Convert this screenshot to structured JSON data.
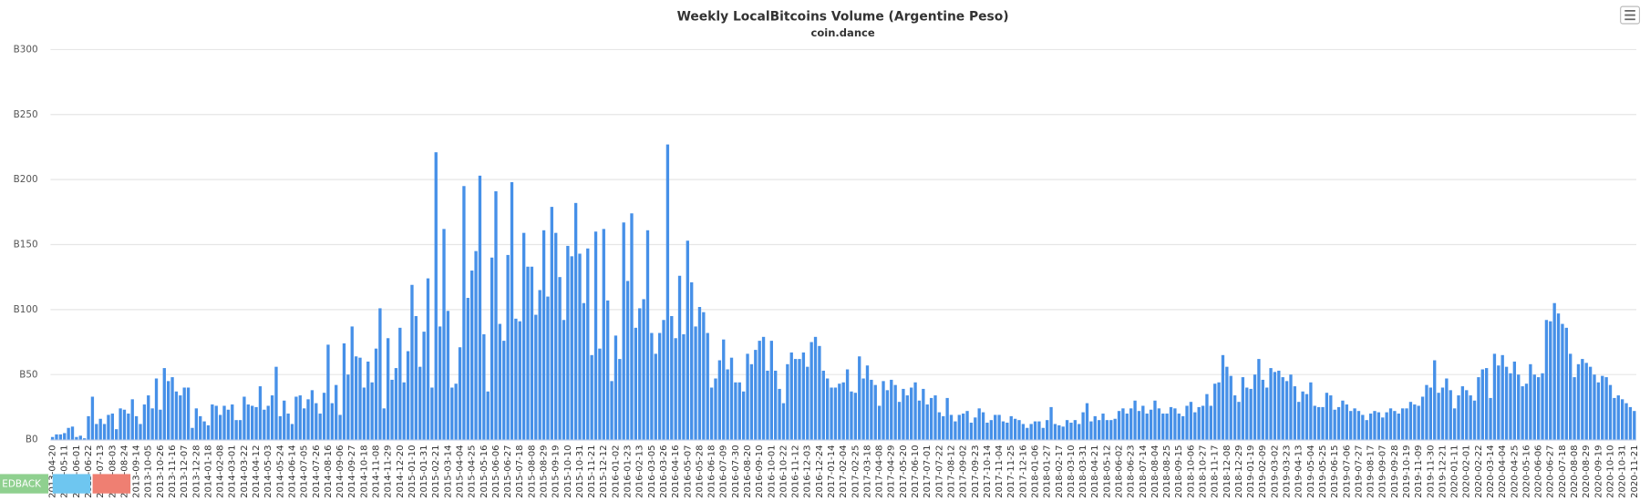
{
  "chart_data": {
    "type": "bar",
    "title": "Weekly LocalBitcoins Volume (Argentine Peso)",
    "subtitle": "coin.dance",
    "color": "#4690e8",
    "grid": true,
    "ylim": [
      0,
      300
    ],
    "yticks": [
      {
        "value": 0,
        "label": "B0"
      },
      {
        "value": 50,
        "label": "B50"
      },
      {
        "value": 100,
        "label": "B100"
      },
      {
        "value": 150,
        "label": "B150"
      },
      {
        "value": 200,
        "label": "B200"
      },
      {
        "value": 250,
        "label": "B250"
      },
      {
        "value": 300,
        "label": "B300"
      }
    ],
    "categories": [
      "2013-04-20",
      null,
      null,
      "2013-05-11",
      null,
      null,
      "2013-06-01",
      null,
      null,
      "2013-06-22",
      null,
      null,
      "2013-07-13",
      null,
      null,
      "2013-08-03",
      null,
      null,
      "2013-08-24",
      null,
      null,
      "2013-09-14",
      null,
      null,
      "2013-10-05",
      null,
      null,
      "2013-10-26",
      null,
      null,
      "2013-11-16",
      null,
      null,
      "2013-12-07",
      null,
      null,
      "2013-12-28",
      null,
      null,
      "2014-01-18",
      null,
      null,
      "2014-02-08",
      null,
      null,
      "2014-03-01",
      null,
      null,
      "2014-03-22",
      null,
      null,
      "2014-04-12",
      null,
      null,
      "2014-05-03",
      null,
      null,
      "2014-05-24",
      null,
      null,
      "2014-06-14",
      null,
      null,
      "2014-07-05",
      null,
      null,
      "2014-07-26",
      null,
      null,
      "2014-08-16",
      null,
      null,
      "2014-09-06",
      null,
      null,
      "2014-09-27",
      null,
      null,
      "2014-10-18",
      null,
      null,
      "2014-11-08",
      null,
      null,
      "2014-11-29",
      null,
      null,
      "2014-12-20",
      null,
      null,
      "2015-01-10",
      null,
      null,
      "2015-01-31",
      null,
      null,
      "2015-02-21",
      null,
      null,
      "2015-03-14",
      null,
      null,
      "2015-04-04",
      null,
      null,
      "2015-04-25",
      null,
      null,
      "2015-05-16",
      null,
      null,
      "2015-06-06",
      null,
      null,
      "2015-06-27",
      null,
      null,
      "2015-07-18",
      null,
      null,
      "2015-08-08",
      null,
      null,
      "2015-08-29",
      null,
      null,
      "2015-09-19",
      null,
      null,
      "2015-10-10",
      null,
      null,
      "2015-10-31",
      null,
      null,
      "2015-11-21",
      null,
      null,
      "2015-12-12",
      null,
      null,
      "2016-01-02",
      null,
      null,
      "2016-01-23",
      null,
      null,
      "2016-02-13",
      null,
      null,
      "2016-03-05",
      null,
      null,
      "2016-03-26",
      null,
      null,
      "2016-04-16",
      null,
      null,
      "2016-05-07",
      null,
      null,
      "2016-05-28",
      null,
      null,
      "2016-06-18",
      null,
      null,
      "2016-07-09",
      null,
      null,
      "2016-07-30",
      null,
      null,
      "2016-08-20",
      null,
      null,
      "2016-09-10",
      null,
      null,
      "2016-10-01",
      null,
      null,
      "2016-10-22",
      null,
      null,
      "2016-11-12",
      null,
      null,
      "2016-12-03",
      null,
      null,
      "2016-12-24",
      null,
      null,
      "2017-01-14",
      null,
      null,
      "2017-02-04",
      null,
      null,
      "2017-02-25",
      null,
      null,
      "2017-03-18",
      null,
      null,
      "2017-04-08",
      null,
      null,
      "2017-04-29",
      null,
      null,
      "2017-05-20",
      null,
      null,
      "2017-06-10",
      null,
      null,
      "2017-07-01",
      null,
      null,
      "2017-07-22",
      null,
      null,
      "2017-08-12",
      null,
      null,
      "2017-09-02",
      null,
      null,
      "2017-09-23",
      null,
      null,
      "2017-10-14",
      null,
      null,
      "2017-11-04",
      null,
      null,
      "2017-11-25",
      null,
      null,
      "2017-12-16",
      null,
      null,
      "2018-01-06",
      null,
      null,
      "2018-01-27",
      null,
      null,
      "2018-02-17",
      null,
      null,
      "2018-03-10",
      null,
      null,
      "2018-03-31",
      null,
      null,
      "2018-04-21",
      null,
      null,
      "2018-05-12",
      null,
      null,
      "2018-06-02",
      null,
      null,
      "2018-06-23",
      null,
      null,
      "2018-07-14",
      null,
      null,
      "2018-08-04",
      null,
      null,
      "2018-08-25",
      null,
      null,
      "2018-09-15",
      null,
      null,
      "2018-10-06",
      null,
      null,
      "2018-10-27",
      null,
      null,
      "2018-11-17",
      null,
      null,
      "2018-12-08",
      null,
      null,
      "2018-12-29",
      null,
      null,
      "2019-01-19",
      null,
      null,
      "2019-02-09",
      null,
      null,
      "2019-03-02",
      null,
      null,
      "2019-03-23",
      null,
      null,
      "2019-04-13",
      null,
      null,
      "2019-05-04",
      null,
      null,
      "2019-05-25",
      null,
      null,
      "2019-06-15",
      null,
      null,
      "2019-07-06",
      null,
      null,
      "2019-07-27",
      null,
      null,
      "2019-08-17",
      null,
      null,
      "2019-09-07",
      null,
      null,
      "2019-09-28",
      null,
      null,
      "2019-10-19",
      null,
      null,
      "2019-11-09",
      null,
      null,
      "2019-11-30",
      null,
      null,
      "2019-12-21",
      null,
      null,
      "2020-01-11",
      null,
      null,
      "2020-02-01",
      null,
      null,
      "2020-02-22",
      null,
      null,
      "2020-03-14",
      null,
      null,
      "2020-04-04",
      null,
      null,
      "2020-04-25",
      null,
      null,
      "2020-05-16",
      null,
      null,
      "2020-06-06",
      null,
      null,
      "2020-06-27",
      null,
      null,
      "2020-07-18",
      null,
      null,
      "2020-08-08",
      null,
      null,
      "2020-08-29",
      null,
      null,
      "2020-09-19",
      null,
      null,
      "2020-10-10",
      null,
      null,
      "2020-10-31",
      null,
      null,
      "2020-11-21"
    ],
    "values": [
      2,
      4,
      4,
      5,
      9,
      10,
      2,
      3,
      1,
      18,
      33,
      12,
      16,
      12,
      19,
      20,
      8,
      24,
      23,
      20,
      31,
      18,
      12,
      27,
      34,
      24,
      47,
      23,
      55,
      45,
      48,
      37,
      34,
      40,
      40,
      9,
      24,
      18,
      14,
      11,
      27,
      26,
      19,
      26,
      23,
      27,
      15,
      15,
      33,
      27,
      26,
      25,
      41,
      23,
      26,
      34,
      56,
      18,
      30,
      20,
      12,
      33,
      34,
      24,
      31,
      38,
      28,
      20,
      36,
      73,
      28,
      42,
      19,
      74,
      50,
      87,
      64,
      63,
      40,
      60,
      44,
      70,
      101,
      24,
      78,
      46,
      55,
      86,
      44,
      68,
      119,
      95,
      56,
      83,
      124,
      40,
      221,
      87,
      162,
      99,
      40,
      43,
      71,
      195,
      109,
      130,
      145,
      203,
      81,
      37,
      140,
      191,
      89,
      76,
      142,
      198,
      93,
      91,
      159,
      133,
      133,
      96,
      115,
      161,
      110,
      179,
      159,
      125,
      92,
      149,
      141,
      182,
      143,
      105,
      147,
      65,
      160,
      70,
      162,
      107,
      45,
      80,
      62,
      167,
      122,
      174,
      86,
      101,
      108,
      161,
      82,
      66,
      82,
      92,
      227,
      95,
      78,
      126,
      81,
      153,
      121,
      87,
      102,
      98,
      82,
      40,
      47,
      61,
      77,
      54,
      63,
      44,
      44,
      37,
      66,
      58,
      69,
      76,
      79,
      53,
      76,
      53,
      39,
      28,
      58,
      67,
      62,
      62,
      67,
      56,
      75,
      79,
      72,
      53,
      47,
      40,
      40,
      43,
      44,
      54,
      37,
      36,
      64,
      47,
      57,
      46,
      42,
      26,
      45,
      38,
      46,
      42,
      29,
      39,
      34,
      40,
      44,
      30,
      39,
      27,
      32,
      34,
      21,
      18,
      32,
      19,
      14,
      19,
      20,
      22,
      13,
      17,
      24,
      21,
      13,
      15,
      19,
      19,
      14,
      13,
      18,
      16,
      15,
      12,
      9,
      12,
      14,
      14,
      9,
      15,
      25,
      12,
      11,
      10,
      15,
      13,
      15,
      12,
      21,
      28,
      14,
      18,
      15,
      20,
      15,
      15,
      16,
      22,
      24,
      20,
      24,
      30,
      22,
      26,
      20,
      23,
      30,
      24,
      20,
      20,
      25,
      24,
      20,
      18,
      26,
      29,
      21,
      25,
      26,
      35,
      26,
      43,
      44,
      65,
      56,
      49,
      34,
      29,
      48,
      40,
      39,
      50,
      62,
      46,
      40,
      55,
      52,
      53,
      48,
      45,
      50,
      41,
      29,
      37,
      35,
      44,
      26,
      25,
      25,
      36,
      34,
      23,
      25,
      30,
      27,
      22,
      24,
      22,
      19,
      15,
      20,
      22,
      21,
      17,
      21,
      24,
      22,
      20,
      24,
      24,
      29,
      27,
      26,
      33,
      42,
      40,
      61,
      36,
      40,
      47,
      38,
      24,
      34,
      41,
      38,
      34,
      30,
      48,
      54,
      55,
      32,
      66,
      57,
      65,
      56,
      51,
      60,
      50,
      41,
      43,
      58,
      50,
      48,
      51,
      92,
      91,
      105,
      97,
      89,
      86,
      66,
      48,
      58,
      62,
      59,
      56,
      50,
      44,
      49,
      48,
      42,
      32,
      34,
      31,
      28,
      25,
      22
    ]
  },
  "feedback_label": "EDBACK"
}
